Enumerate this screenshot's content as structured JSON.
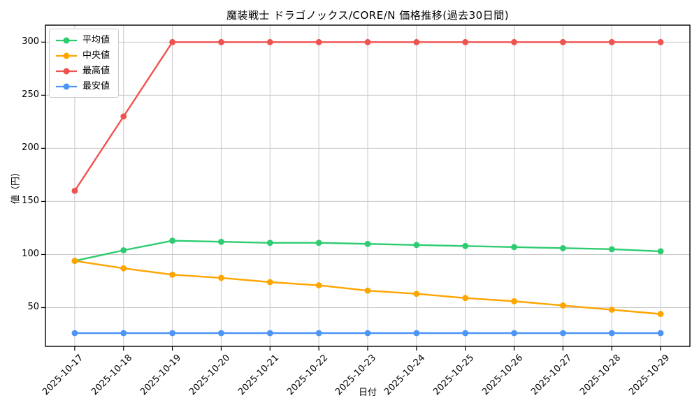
{
  "chart_data": {
    "type": "line",
    "title": "魔装戦士 ドラゴノックス/CORE/N 価格推移(過去30日間)",
    "xlabel": "日付",
    "ylabel": "値（円）",
    "x": [
      "2025-10-17",
      "2025-10-18",
      "2025-10-19",
      "2025-10-20",
      "2025-10-21",
      "2025-10-22",
      "2025-10-23",
      "2025-10-24",
      "2025-10-25",
      "2025-10-26",
      "2025-10-27",
      "2025-10-28",
      "2025-10-29"
    ],
    "series": [
      {
        "name": "平均値",
        "color": "#2ecc71",
        "values": [
          94,
          104,
          113,
          112,
          111,
          111,
          110,
          109,
          108,
          107,
          106,
          105,
          103
        ]
      },
      {
        "name": "中央値",
        "color": "#ffa500",
        "values": [
          94,
          87,
          81,
          78,
          74,
          71,
          66,
          63,
          59,
          56,
          52,
          48,
          44
        ]
      },
      {
        "name": "最高値",
        "color": "#ef5350",
        "values": [
          160,
          230,
          300,
          300,
          300,
          300,
          300,
          300,
          300,
          300,
          300,
          300,
          300
        ]
      },
      {
        "name": "最安値",
        "color": "#4d94f7",
        "values": [
          26,
          26,
          26,
          26,
          26,
          26,
          26,
          26,
          26,
          26,
          26,
          26,
          26
        ]
      }
    ],
    "yticks": [
      50,
      100,
      150,
      200,
      250,
      300
    ],
    "ylim": [
      13.5,
      316
    ],
    "grid": true,
    "legend_position": "upper left",
    "x_margin_units": 0.6
  },
  "colors": {
    "background": "#ffffff",
    "grid": "#c8c8c8",
    "axis": "#000000",
    "text": "#000000",
    "legend_border": "#cccccc"
  }
}
